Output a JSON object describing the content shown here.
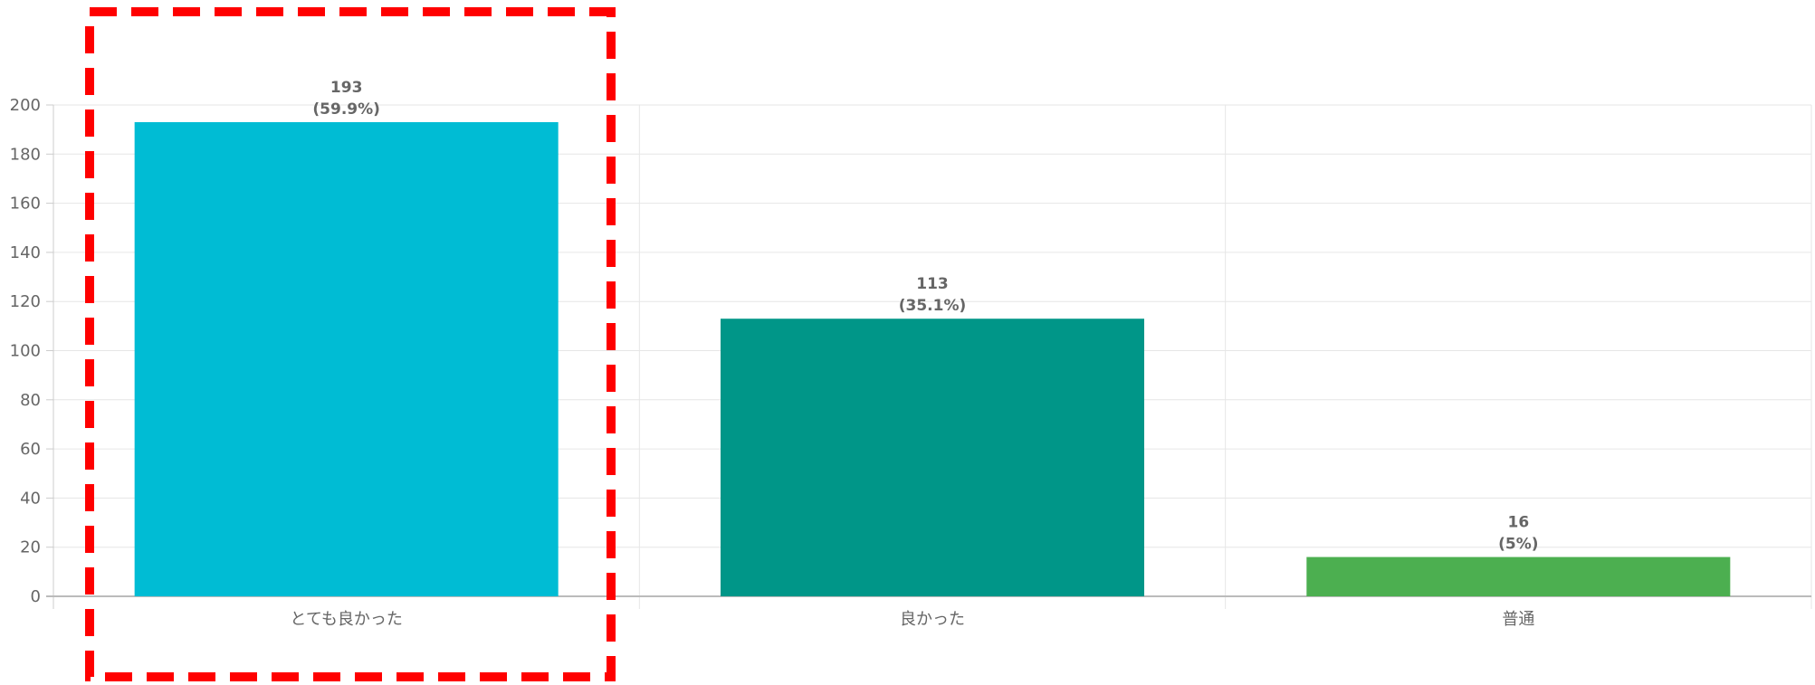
{
  "chart_data": {
    "type": "bar",
    "categories": [
      "とても良かった",
      "良かった",
      "普通"
    ],
    "values": [
      193,
      113,
      16
    ],
    "percent_labels": [
      "(59.9%)",
      "(35.1%)",
      "(5%)"
    ],
    "colors": [
      "#00bcd4",
      "#009688",
      "#4caf50"
    ],
    "ylim": [
      0,
      200
    ],
    "y_ticks": [
      "0",
      "20",
      "40",
      "60",
      "80",
      "100",
      "120",
      "140",
      "160",
      "180",
      "200"
    ],
    "grid": true,
    "highlight": {
      "category_index": 0,
      "style": "dashed",
      "color": "#ff0000"
    }
  }
}
